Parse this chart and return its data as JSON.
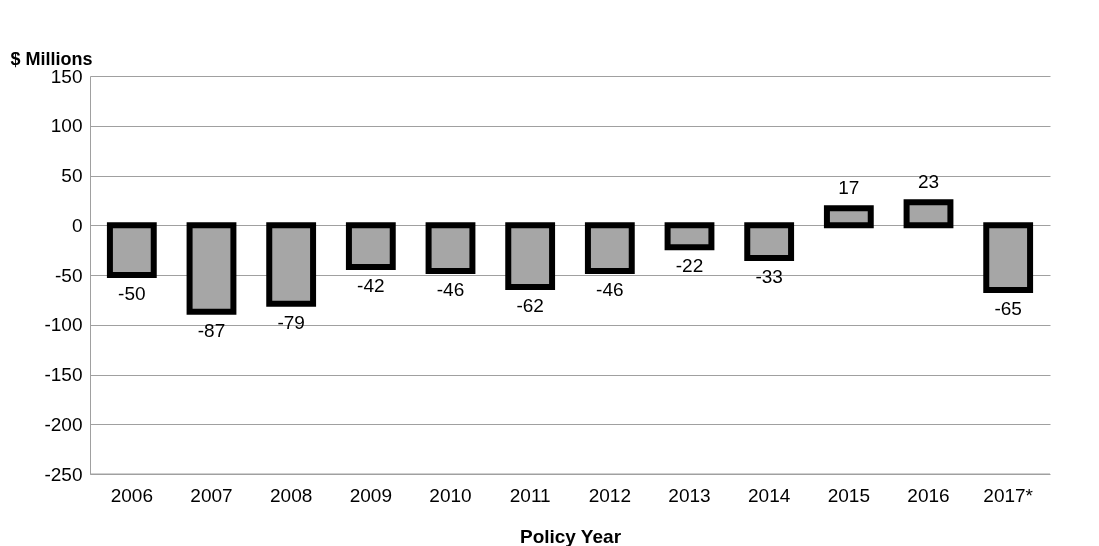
{
  "chart_data": {
    "type": "bar",
    "ylabel": "$ Millions",
    "xlabel": "Policy Year",
    "categories": [
      "2006",
      "2007",
      "2008",
      "2009",
      "2010",
      "2011",
      "2012",
      "2013",
      "2014",
      "2015",
      "2016",
      "2017*"
    ],
    "values": [
      -50,
      -87,
      -79,
      -42,
      -46,
      -62,
      -46,
      -22,
      -33,
      17,
      23,
      -65
    ],
    "color": "#a6a6a6",
    "ylim": [
      -250,
      150
    ],
    "yticks": [
      -250,
      -200,
      -150,
      -100,
      -50,
      0,
      50,
      100,
      150
    ],
    "grid": "y",
    "data_labels": true
  }
}
